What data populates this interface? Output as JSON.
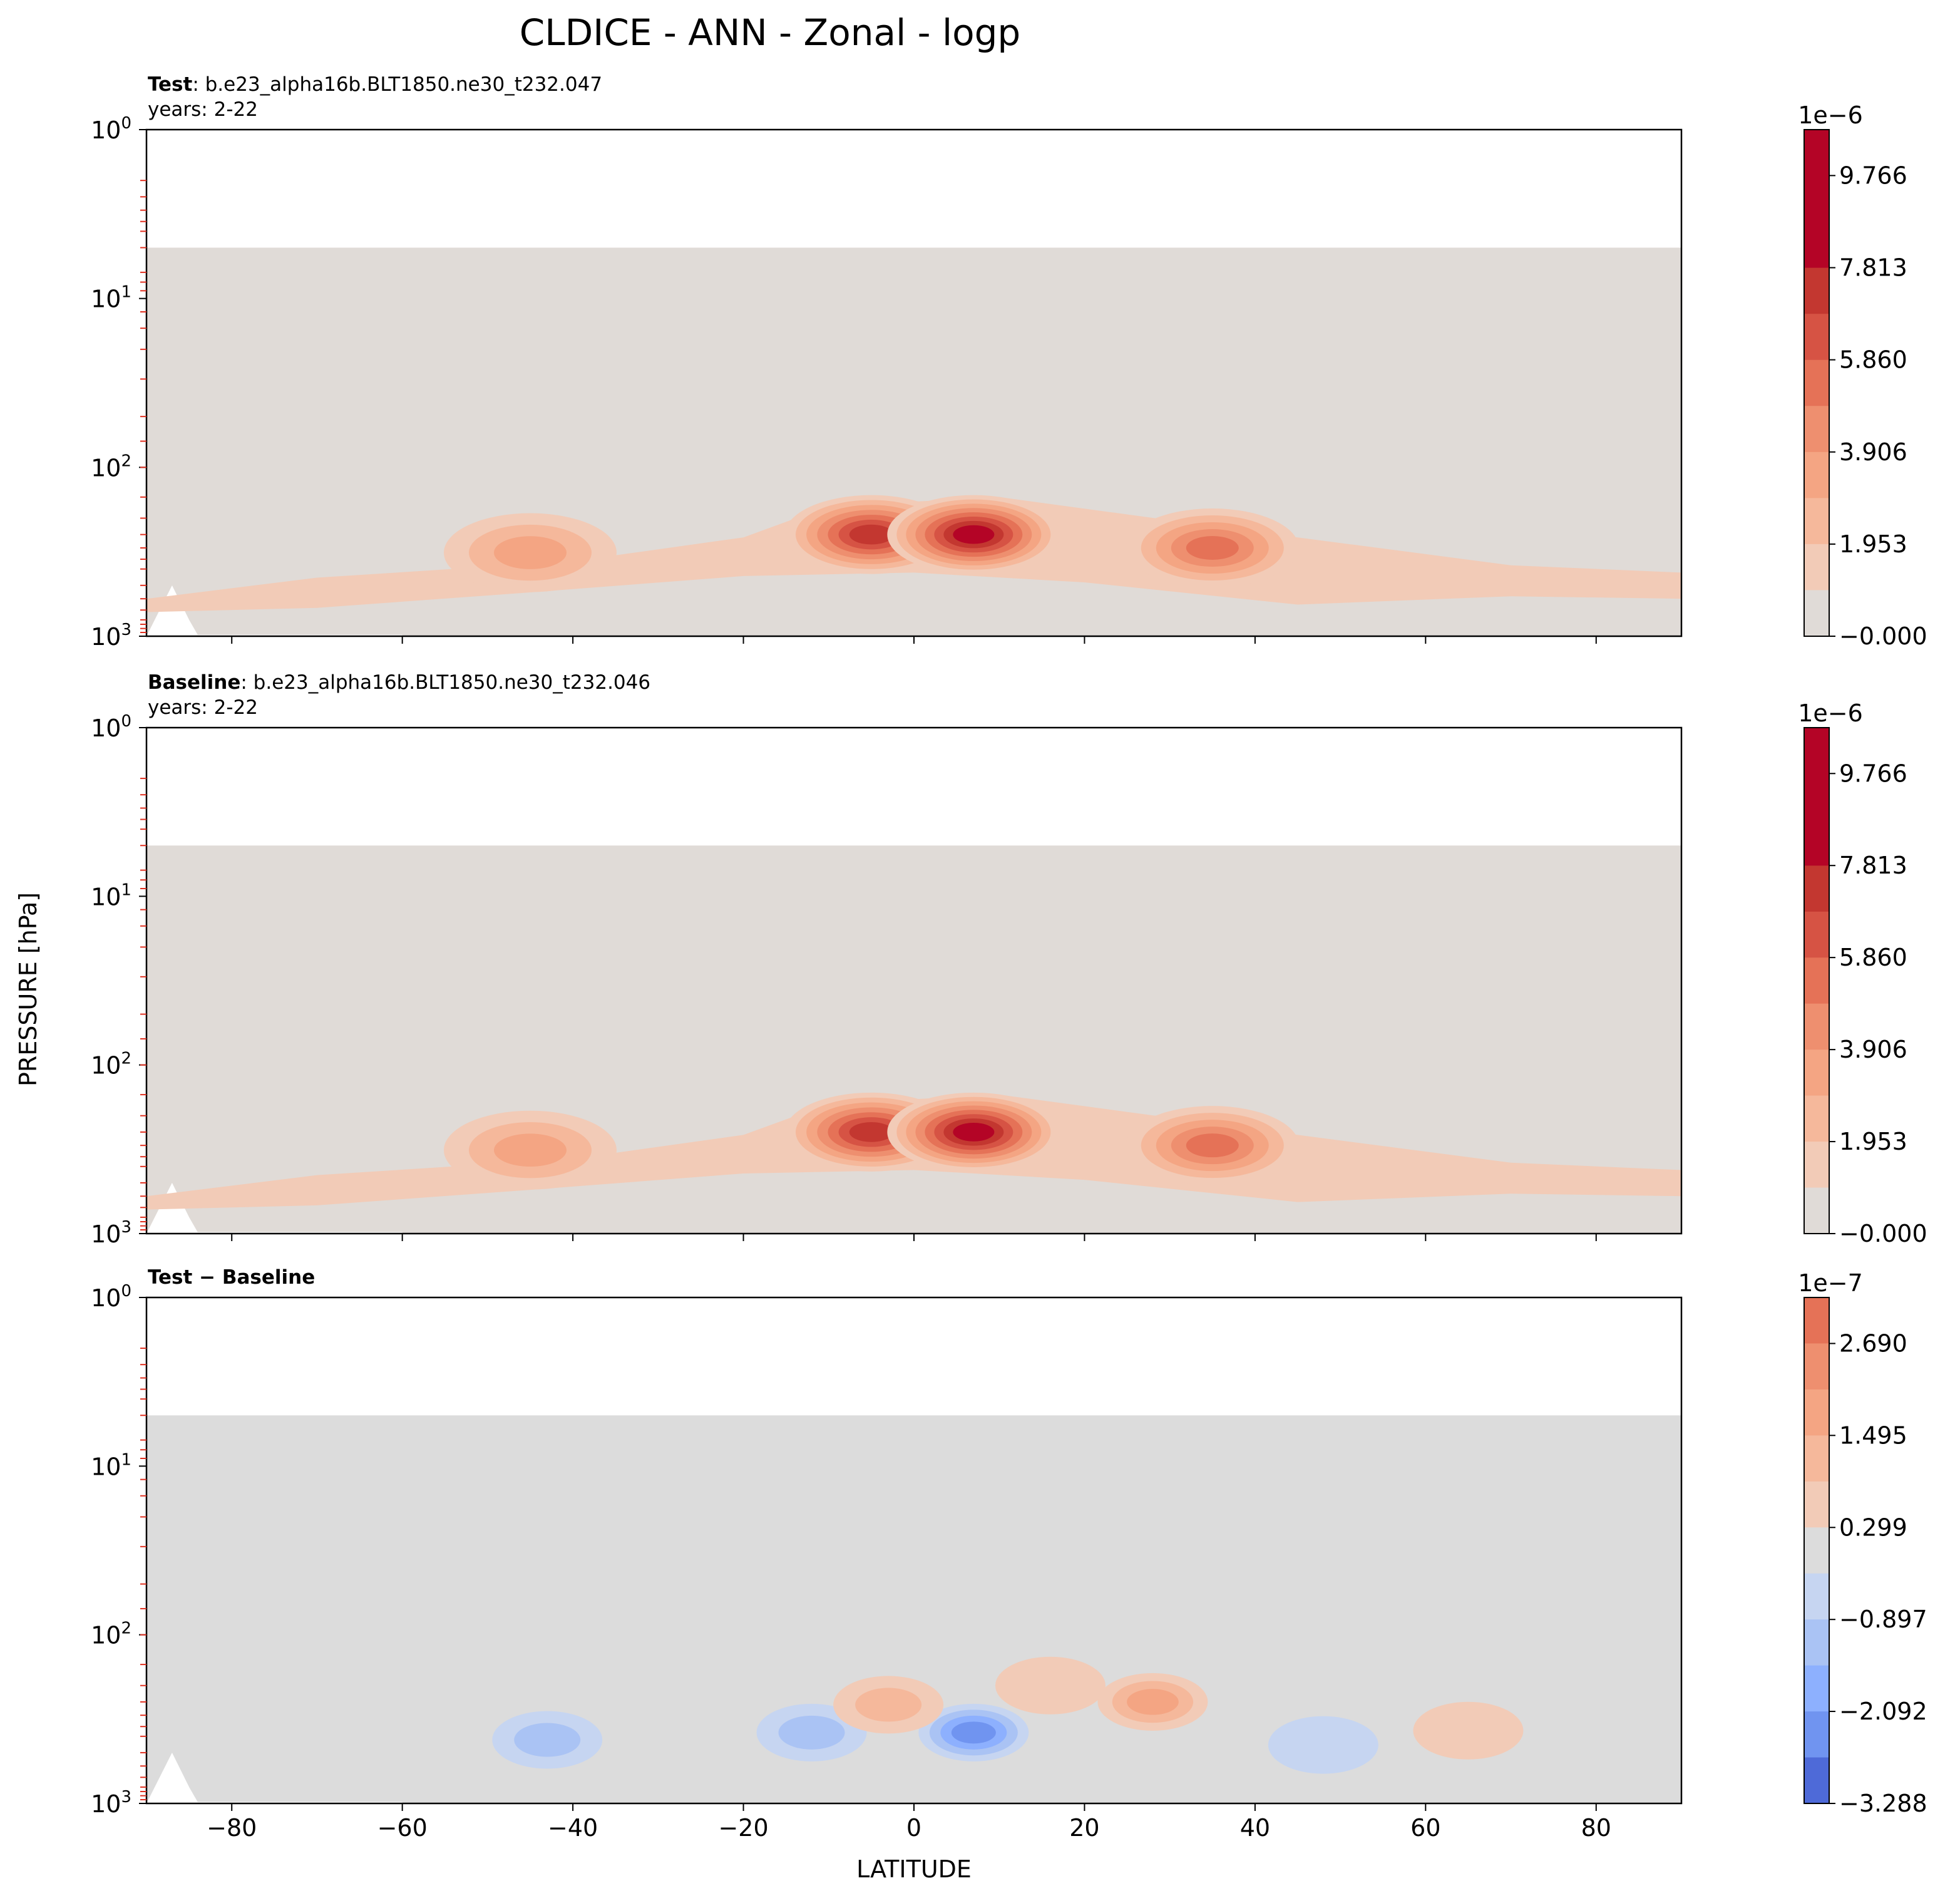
{
  "figure": {
    "title": "CLDICE - ANN - Zonal - logp",
    "xlabel": "LATITUDE",
    "ylabel": "PRESSURE [hPa]"
  },
  "colors": {
    "background_gray_abs": "#e0dbd7",
    "background_gray_diff": "#dcdcdc",
    "reds": [
      "#f2cbb7",
      "#f5b89b",
      "#f4a583",
      "#ee8f6f",
      "#e57257",
      "#d65344",
      "#c33730",
      "#b40426"
    ],
    "blues": [
      "#c6d5f1",
      "#aac3f4",
      "#8db0fe",
      "#7094f0",
      "#4e6ad8"
    ]
  },
  "chart_data": [
    {
      "type": "contour",
      "panel": "test",
      "label_bold": "Test",
      "label_rest": ": b.e23_alpha16b.BLT1850.ne30_t232.047",
      "years": "years: 2-22",
      "x_ticks": [
        "−80",
        "−60",
        "−40",
        "−20",
        "0",
        "20",
        "40",
        "60",
        "80"
      ],
      "x_tick_values": [
        -80,
        -60,
        -40,
        -20,
        0,
        20,
        40,
        60,
        80
      ],
      "y_ticks": [
        "10",
        "10",
        "10",
        "10"
      ],
      "y_tick_exps": [
        "0",
        "1",
        "2",
        "3"
      ],
      "xlim": [
        -90,
        90
      ],
      "ylim": [
        1000,
        1
      ],
      "y_scale": "log",
      "colorbar": {
        "offset": "1e−6",
        "tick_labels": [
          "9.766",
          "7.813",
          "5.860",
          "3.906",
          "1.953",
          "−0.000"
        ],
        "tick_values": [
          9.766,
          7.813,
          5.86,
          3.906,
          1.953,
          0.0
        ],
        "levels": 11,
        "range": [
          0.0,
          10.74
        ],
        "colormap": "coolwarm-upper"
      },
      "blobs": [
        {
          "lat": -5,
          "p": 250,
          "level": 7
        },
        {
          "lat": 7,
          "p": 250,
          "level": 8
        },
        {
          "lat": 35,
          "p": 300,
          "level": 5
        },
        {
          "lat": -45,
          "p": 320,
          "level": 3
        }
      ]
    },
    {
      "type": "contour",
      "panel": "baseline",
      "label_bold": "Baseline",
      "label_rest": ": b.e23_alpha16b.BLT1850.ne30_t232.046",
      "years": "years: 2-22",
      "x_ticks": [
        "−80",
        "−60",
        "−40",
        "−20",
        "0",
        "20",
        "40",
        "60",
        "80"
      ],
      "x_tick_values": [
        -80,
        -60,
        -40,
        -20,
        0,
        20,
        40,
        60,
        80
      ],
      "y_ticks": [
        "10",
        "10",
        "10",
        "10"
      ],
      "y_tick_exps": [
        "0",
        "1",
        "2",
        "3"
      ],
      "xlim": [
        -90,
        90
      ],
      "ylim": [
        1000,
        1
      ],
      "y_scale": "log",
      "colorbar": {
        "offset": "1e−6",
        "tick_labels": [
          "9.766",
          "7.813",
          "5.860",
          "3.906",
          "1.953",
          "−0.000"
        ],
        "tick_values": [
          9.766,
          7.813,
          5.86,
          3.906,
          1.953,
          0.0
        ],
        "levels": 11,
        "range": [
          0.0,
          10.74
        ],
        "colormap": "coolwarm-upper"
      },
      "blobs": [
        {
          "lat": -5,
          "p": 250,
          "level": 7
        },
        {
          "lat": 7,
          "p": 250,
          "level": 8
        },
        {
          "lat": 35,
          "p": 300,
          "level": 5
        },
        {
          "lat": -45,
          "p": 320,
          "level": 3
        }
      ]
    },
    {
      "type": "contour",
      "panel": "difference",
      "label_bold": "Test − Baseline",
      "label_rest": "",
      "years": "",
      "x_ticks": [
        "−80",
        "−60",
        "−40",
        "−20",
        "0",
        "20",
        "40",
        "60",
        "80"
      ],
      "x_tick_values": [
        -80,
        -60,
        -40,
        -20,
        0,
        20,
        40,
        60,
        80
      ],
      "y_ticks": [
        "10",
        "10",
        "10",
        "10"
      ],
      "y_tick_exps": [
        "0",
        "1",
        "2",
        "3"
      ],
      "xlim": [
        -90,
        90
      ],
      "ylim": [
        1000,
        1
      ],
      "y_scale": "log",
      "colorbar": {
        "offset": "1e−7",
        "tick_labels": [
          "2.690",
          "1.495",
          "0.299",
          "−0.897",
          "−2.092",
          "−3.288"
        ],
        "tick_values": [
          2.69,
          1.495,
          0.299,
          -0.897,
          -2.092,
          -3.288
        ],
        "levels": 11,
        "range": [
          -3.288,
          3.288
        ],
        "colormap": "coolwarm"
      },
      "blobs": [
        {
          "lat": 7,
          "p": 380,
          "level": -4
        },
        {
          "lat": -12,
          "p": 380,
          "level": -2
        },
        {
          "lat": -43,
          "p": 420,
          "level": -2
        },
        {
          "lat": 48,
          "p": 450,
          "level": -1
        },
        {
          "lat": -3,
          "p": 260,
          "level": 2
        },
        {
          "lat": 28,
          "p": 250,
          "level": 3
        },
        {
          "lat": 16,
          "p": 200,
          "level": 1
        },
        {
          "lat": 65,
          "p": 370,
          "level": 1
        }
      ]
    }
  ]
}
